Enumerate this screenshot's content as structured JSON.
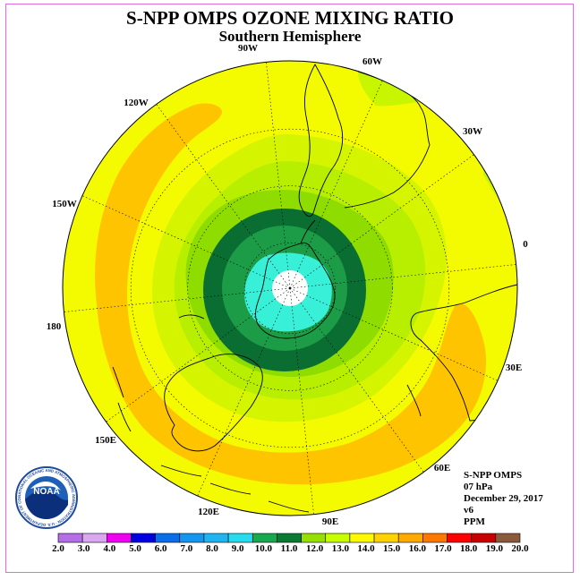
{
  "title": "S-NPP OMPS OZONE MIXING RATIO",
  "subtitle": "Southern Hemisphere",
  "longitude_labels": [
    "90W",
    "60W",
    "30W",
    "0",
    "30E",
    "60E",
    "90E",
    "120E",
    "150E",
    "180",
    "150W",
    "120W"
  ],
  "info": {
    "instrument": "S-NPP OMPS",
    "level": "07 hPa",
    "date": "December 29, 2017",
    "version": "v6",
    "units": "PPM"
  },
  "logo": {
    "text": "NOAA",
    "ring_text": "NATIONAL OCEANIC AND ATMOSPHERIC ADMINISTRATION · U.S. DEPARTMENT OF COMMERCE"
  },
  "colorbar": {
    "labels": [
      "2.0",
      "3.0",
      "4.0",
      "5.0",
      "6.0",
      "7.0",
      "8.0",
      "9.0",
      "10.0",
      "11.0",
      "12.0",
      "13.0",
      "14.0",
      "15.0",
      "16.0",
      "17.0",
      "18.0",
      "19.0",
      "20.0"
    ],
    "colors": [
      "#b36ee8",
      "#d9a8f0",
      "#f000f0",
      "#0000e0",
      "#0a6ee8",
      "#1496f0",
      "#20b4f0",
      "#28dcf0",
      "#18a850",
      "#0a7a34",
      "#96e000",
      "#c8ff00",
      "#fffa00",
      "#ffd200",
      "#ffaa00",
      "#ff7800",
      "#ff0000",
      "#c80000",
      "#8b5a3c"
    ]
  },
  "ozone_bands_ppm": [
    {
      "range": "9.0-10.0",
      "color": "#38f0d8"
    },
    {
      "range": "10.0-11.0",
      "color": "#1c9c46"
    },
    {
      "range": "11.0-12.0",
      "color": "#0a6e32"
    },
    {
      "range": "12.0-13.0",
      "color": "#8ce000"
    },
    {
      "range": "13.0-14.0",
      "color": "#c4f500"
    },
    {
      "range": "14.0-15.0",
      "color": "#f4fa00"
    },
    {
      "range": "15.0-16.0",
      "color": "#ffd000"
    }
  ]
}
